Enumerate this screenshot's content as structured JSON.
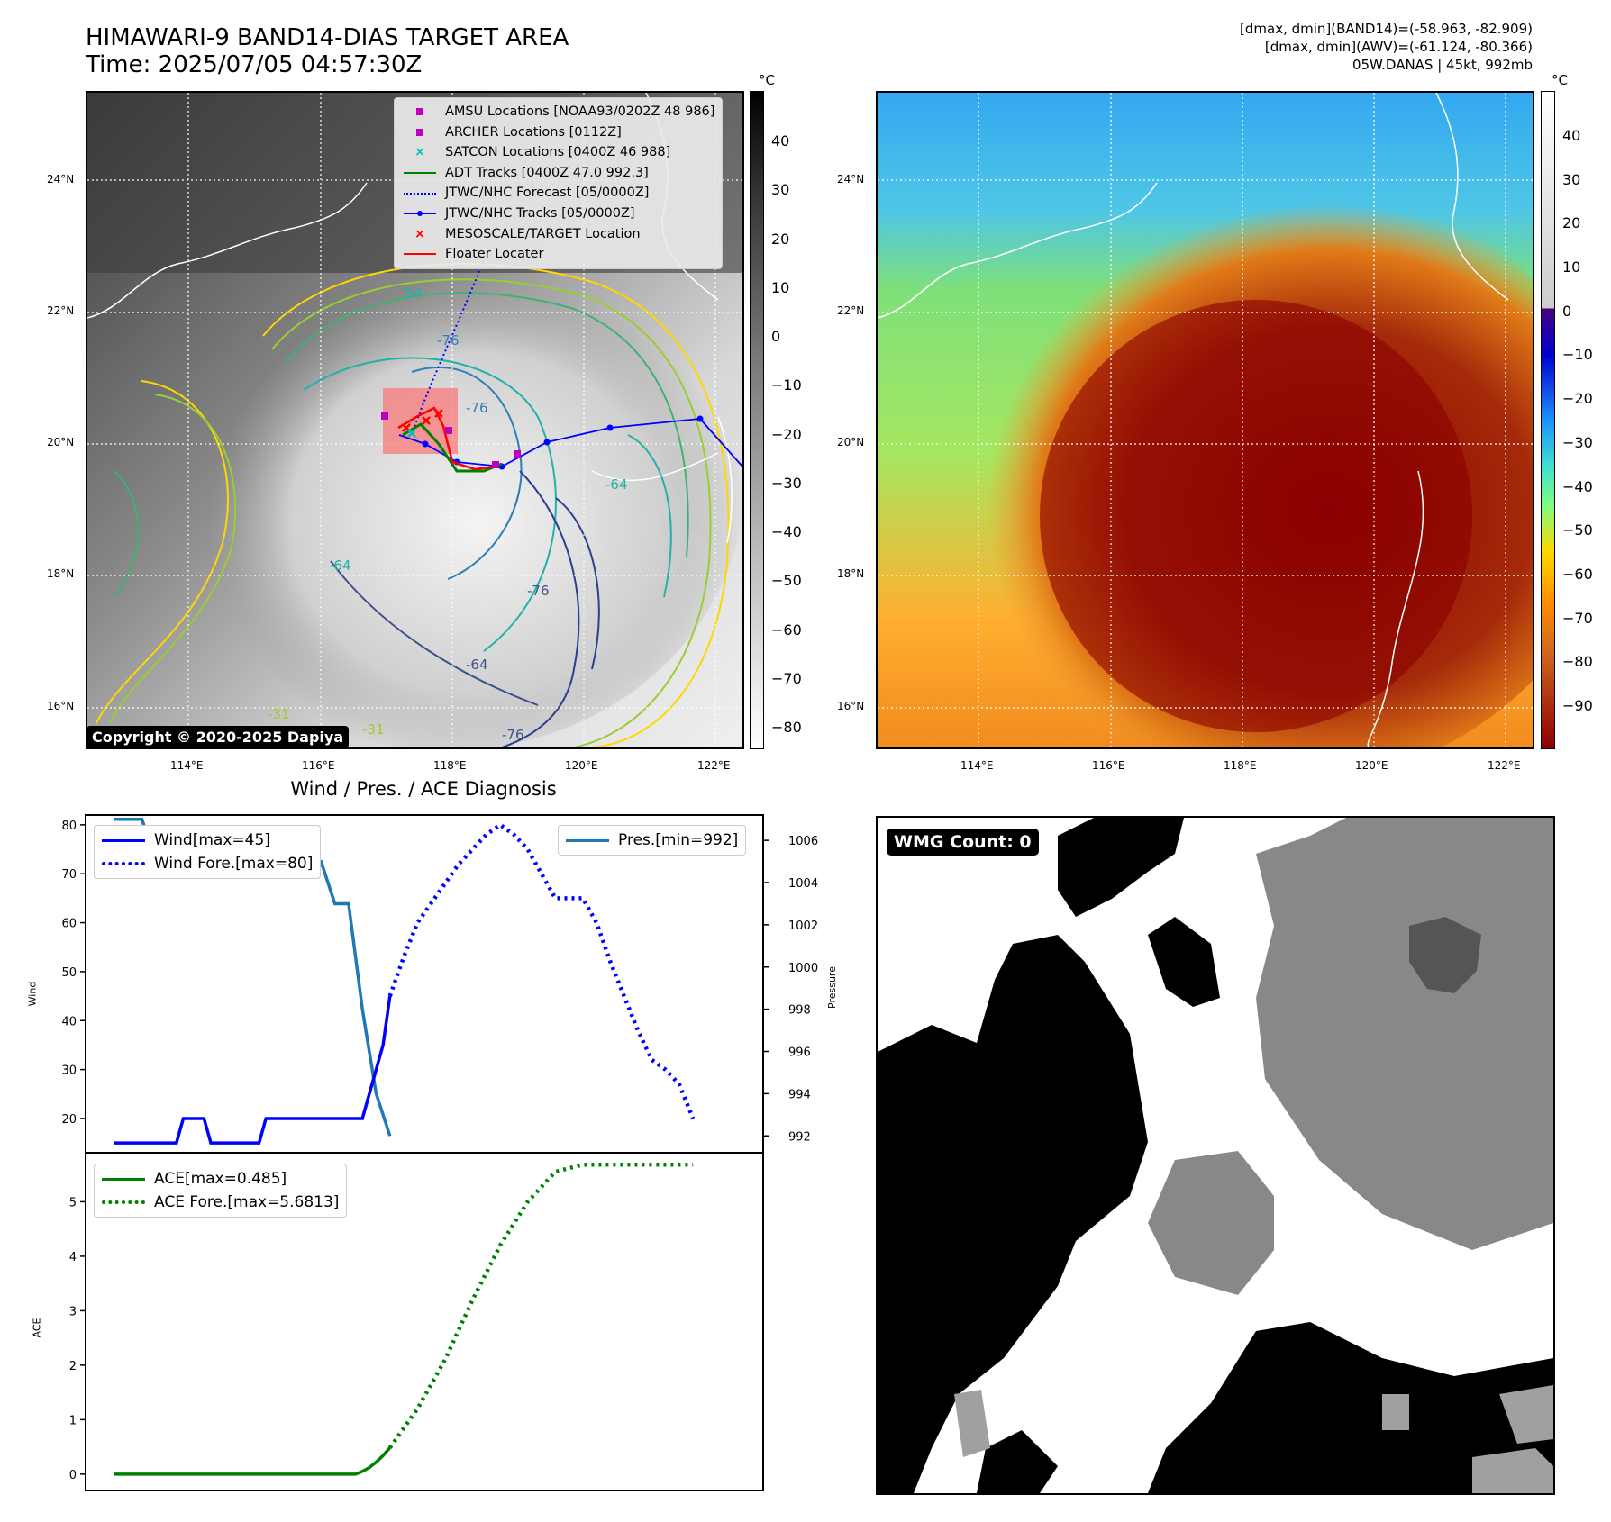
{
  "header": {
    "title_line1": "HIMAWARI-9 BAND14-DIAS TARGET AREA",
    "title_line2": "Time: 2025/07/05 04:57:30Z",
    "info_line1": "[dmax, dmin](BAND14)=(-58.963, -82.909)",
    "info_line2": "[dmax, dmin](AWV)=(-61.124, -80.366)",
    "info_line3": "05W.DANAS | 45kt, 992mb"
  },
  "map_axes": {
    "lat_labels": [
      "24°N",
      "22°N",
      "20°N",
      "18°N",
      "16°N"
    ],
    "lon_labels": [
      "114°E",
      "116°E",
      "118°E",
      "120°E",
      "122°E"
    ]
  },
  "left_map": {
    "legend": [
      {
        "label": "AMSU Locations [NOAA93/0202Z 48 986]",
        "symbol": "square",
        "color": "#bf00bf"
      },
      {
        "label": "ARCHER Locations [0112Z]",
        "symbol": "square",
        "color": "#bf00bf"
      },
      {
        "label": "SATCON Locations [0400Z 46 988]",
        "symbol": "x",
        "color": "#00bfbf"
      },
      {
        "label": "ADT Tracks [0400Z 47.0 992.3]",
        "symbol": "line",
        "color": "#008000"
      },
      {
        "label": "JTWC/NHC Forecast [05/0000Z]",
        "symbol": "dotted",
        "color": "#0000ff"
      },
      {
        "label": "JTWC/NHC Tracks [05/0000Z]",
        "symbol": "line-dot",
        "color": "#0000ff"
      },
      {
        "label": "MESOSCALE/TARGET Location",
        "symbol": "x",
        "color": "#ff0000"
      },
      {
        "label": "Floater Locater",
        "symbol": "line",
        "color": "#ff0000"
      }
    ],
    "contour_labels": [
      "-54",
      "-76",
      "-76",
      "-64",
      "-64",
      "-76",
      "-64",
      "-76",
      "-31",
      "-31"
    ],
    "copyright": "Copyright © 2020-2025 Dapiya",
    "colorbar": {
      "unit": "°C",
      "ticks": [
        "40",
        "30",
        "20",
        "10",
        "0",
        "−10",
        "−20",
        "−30",
        "−40",
        "−50",
        "−60",
        "−70",
        "−80"
      ]
    }
  },
  "right_map": {
    "colorbar": {
      "unit": "°C",
      "ticks": [
        "40",
        "30",
        "20",
        "10",
        "0",
        "−10",
        "−20",
        "−30",
        "−40",
        "−50",
        "−60",
        "−70",
        "−80",
        "−90"
      ]
    }
  },
  "diag": {
    "title": "Wind / Pres. / ACE Diagnosis",
    "wind_ylabel": "Wind",
    "pres_ylabel": "Pressure",
    "ace_ylabel": "ACE",
    "wind_ticks": [
      "80",
      "70",
      "60",
      "50",
      "40",
      "30",
      "20"
    ],
    "pres_ticks": [
      "1006",
      "1004",
      "1002",
      "1000",
      "998",
      "996",
      "994",
      "992"
    ],
    "ace_ticks": [
      "5",
      "4",
      "3",
      "2",
      "1",
      "0"
    ],
    "legend_wind": "Wind[max=45]",
    "legend_wind_fore": "Wind Fore.[max=80]",
    "legend_pres": "Pres.[min=992]",
    "legend_ace": "ACE[max=0.485]",
    "legend_ace_fore": "ACE Fore.[max=5.6813]"
  },
  "wmg": {
    "label": "WMG Count: 0"
  },
  "colors": {
    "wind": "#0000ff",
    "pres": "#1f77b4",
    "ace": "#008000",
    "track": "#0000ff",
    "target": "#ff0000"
  },
  "chart_data": [
    {
      "type": "line",
      "title": "Wind / Pres. / ACE Diagnosis",
      "ylabel": "Wind",
      "ylim": [
        13,
        82
      ],
      "series": [
        {
          "name": "Wind[max=45]",
          "style": "solid",
          "color": "#0000ff",
          "x": [
            0,
            1,
            2,
            3,
            4,
            5,
            6,
            7,
            8,
            9,
            10,
            11,
            12,
            13,
            14,
            15,
            16,
            17,
            18,
            19,
            20,
            21,
            22,
            23,
            24,
            25,
            26,
            27,
            28,
            29,
            30,
            31,
            32,
            33,
            34,
            35,
            36,
            37,
            38,
            39,
            40
          ],
          "y": [
            15,
            15,
            15,
            15,
            15,
            15,
            15,
            15,
            15,
            15,
            20,
            20,
            20,
            20,
            15,
            15,
            15,
            15,
            15,
            15,
            15,
            15,
            20,
            20,
            20,
            20,
            20,
            20,
            20,
            20,
            20,
            20,
            20,
            20,
            20,
            20,
            20,
            25,
            30,
            35,
            45
          ]
        },
        {
          "name": "Wind Fore.[max=80]",
          "style": "dotted",
          "color": "#0000ff",
          "x": [
            40,
            42,
            44,
            46,
            48,
            50,
            52,
            54,
            56,
            58,
            60,
            62,
            64,
            66,
            68,
            70,
            72,
            74,
            76,
            78,
            80,
            82,
            84
          ],
          "y": [
            45,
            53,
            60,
            64,
            68,
            72,
            75,
            78,
            80,
            78,
            75,
            70,
            65,
            65,
            65,
            60,
            52,
            45,
            38,
            32,
            30,
            27,
            20
          ]
        }
      ]
    },
    {
      "type": "line",
      "ylabel": "Pressure",
      "ylim": [
        991.2,
        1007.2
      ],
      "series": [
        {
          "name": "Pres.[min=992]",
          "style": "solid",
          "color": "#1f77b4",
          "x": [
            0,
            2,
            4,
            6,
            8,
            10,
            12,
            14,
            16,
            18,
            20,
            22,
            24,
            26,
            28,
            30,
            32,
            34,
            36,
            38,
            40
          ],
          "y": [
            1007,
            1007,
            1007,
            1005,
            1005,
            1005,
            1005,
            1006,
            1006,
            1006,
            1006,
            1005,
            1006,
            1006,
            1005,
            1005,
            1003,
            1003,
            998,
            994,
            992
          ]
        }
      ]
    },
    {
      "type": "line",
      "ylabel": "ACE",
      "ylim": [
        -0.3,
        5.9
      ],
      "series": [
        {
          "name": "ACE[max=0.485]",
          "style": "solid",
          "color": "#008000",
          "x": [
            0,
            5,
            10,
            15,
            20,
            25,
            30,
            35,
            36,
            37,
            38,
            39,
            40
          ],
          "y": [
            0,
            0,
            0,
            0,
            0,
            0,
            0,
            0,
            0.05,
            0.12,
            0.22,
            0.34,
            0.485
          ]
        },
        {
          "name": "ACE Fore.[max=5.6813]",
          "style": "dotted",
          "color": "#008000",
          "x": [
            40,
            44,
            48,
            52,
            56,
            60,
            64,
            68,
            72,
            76,
            80,
            84
          ],
          "y": [
            0.485,
            1.2,
            2.1,
            3.2,
            4.2,
            5.0,
            5.55,
            5.6813,
            5.6813,
            5.6813,
            5.6813,
            5.6813
          ]
        }
      ]
    }
  ]
}
